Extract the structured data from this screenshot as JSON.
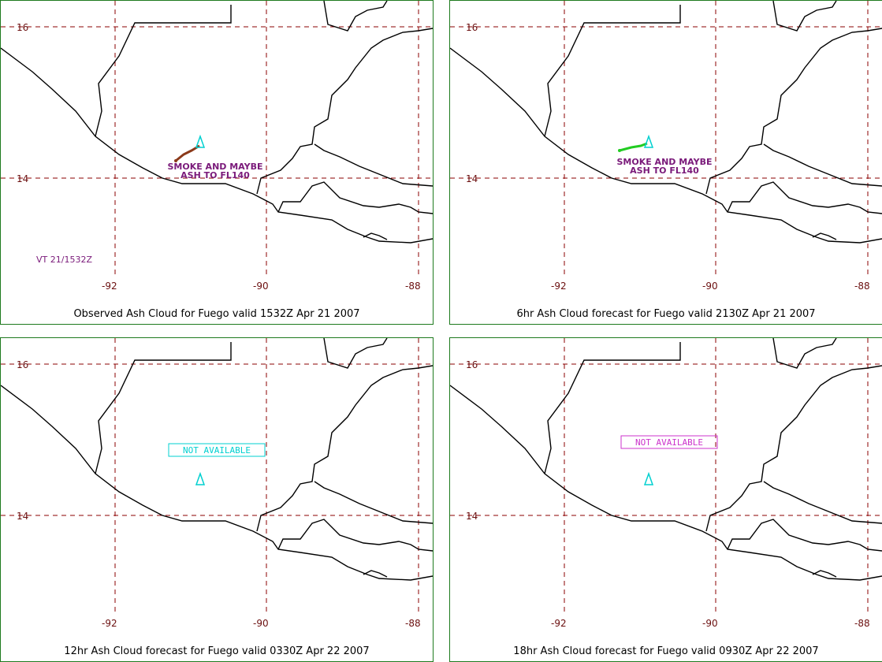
{
  "panels": [
    {
      "caption": "Observed Ash Cloud for Fuego valid 1532Z Apr 21 2007",
      "annotation": [
        "SMOKE AND MAYBE",
        "ASH TO FL140"
      ],
      "valid_time_label": "VT 21/1532Z",
      "plume_color": "#8b3a1a",
      "status": "observed"
    },
    {
      "caption": "6hr Ash Cloud forecast for Fuego valid 2130Z Apr 21 2007",
      "annotation": [
        "SMOKE AND MAYBE",
        "ASH TO FL140"
      ],
      "plume_color": "#22cc22",
      "status": "forecast"
    },
    {
      "caption": "12hr Ash Cloud forecast for Fuego valid 0330Z Apr 22 2007",
      "not_available_label": "NOT AVAILABLE",
      "box_color": "#00d0d0",
      "status": "not-available"
    },
    {
      "caption": "18hr Ash Cloud forecast for Fuego valid 0930Z Apr 22 2007",
      "not_available_label": "NOT AVAILABLE",
      "box_color": "#cc33cc",
      "status": "not-available"
    }
  ],
  "grid": {
    "latitudes": [
      "16",
      "14"
    ],
    "longitudes": [
      "-92",
      "-90",
      "-88"
    ],
    "grid_color": "#8b0000"
  },
  "volcano_icon": "volcano-triangle-icon",
  "volcano_color": "#00d0d0"
}
